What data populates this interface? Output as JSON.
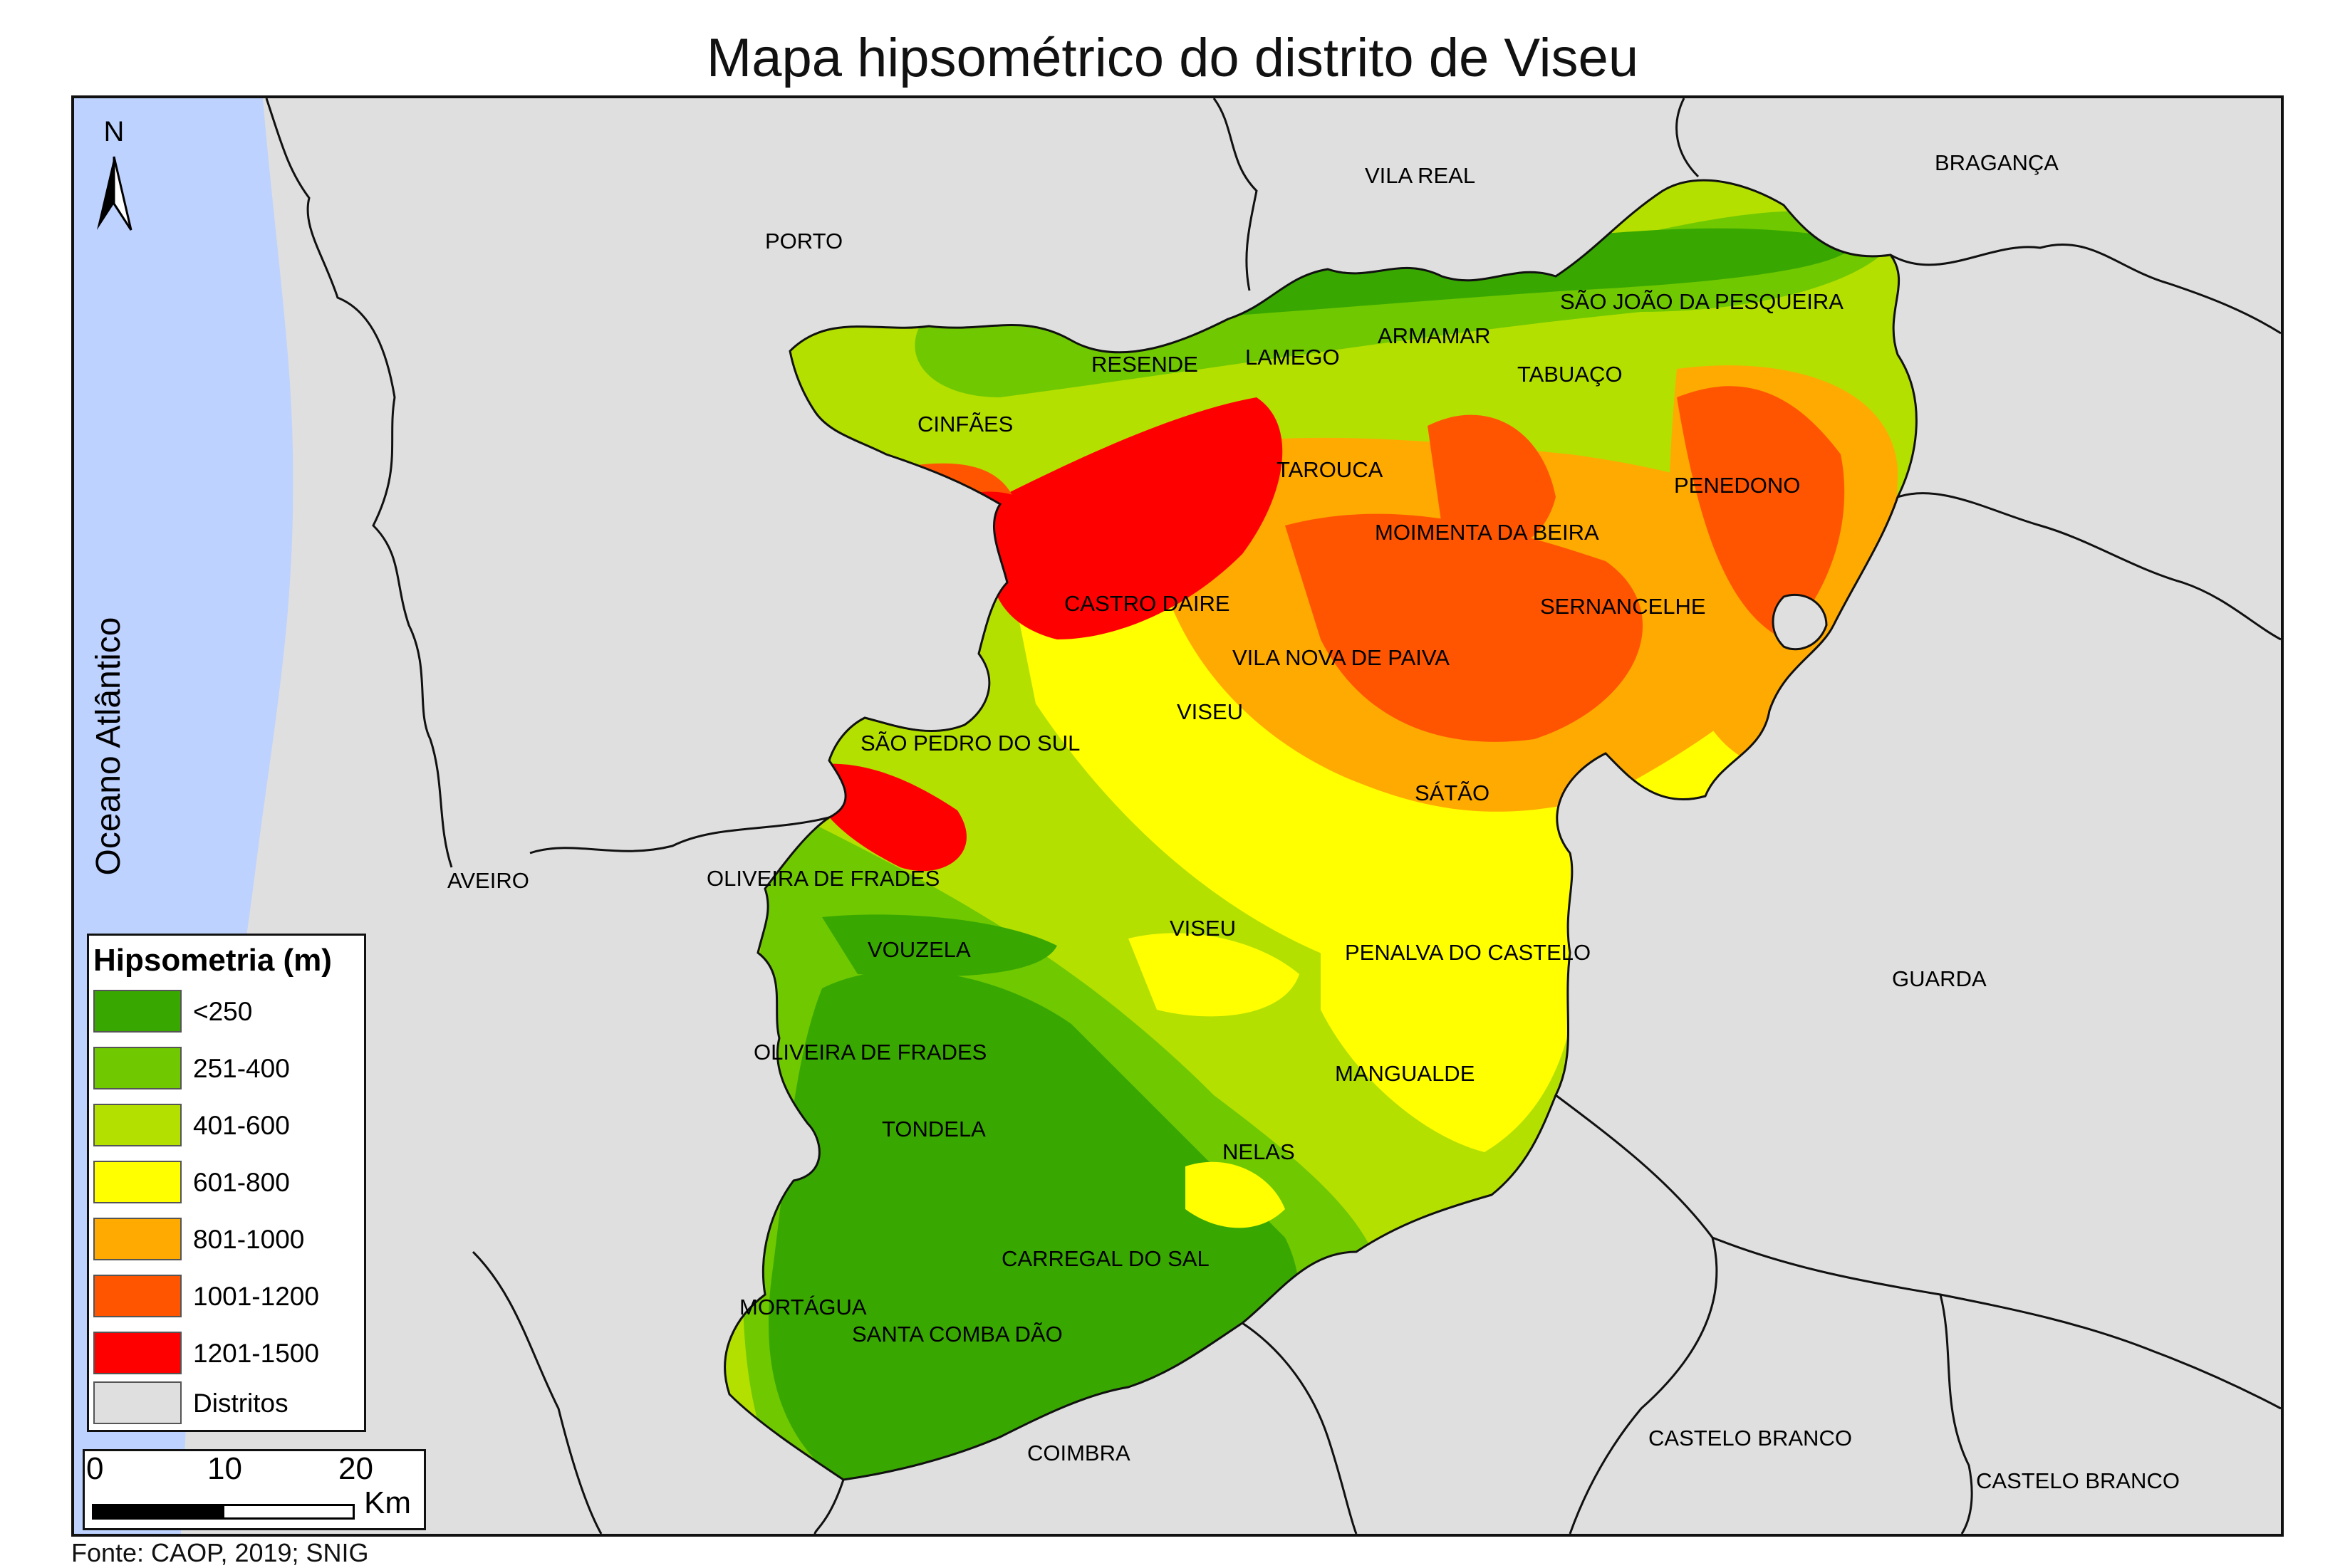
{
  "title": "Mapa hipsométrico do distrito de Viseu",
  "ocean_label": "Oceano Atlântico",
  "north_label": "N",
  "districts": [
    {
      "name": "PORTO"
    },
    {
      "name": "VILA REAL"
    },
    {
      "name": "BRAGANÇA"
    },
    {
      "name": "AVEIRO"
    },
    {
      "name": "GUARDA"
    },
    {
      "name": "COIMBRA"
    },
    {
      "name": "CASTELO BRANCO"
    },
    {
      "name": "CASTELO BRANCO"
    }
  ],
  "municipalities": [
    "SÃO JOÃO DA PESQUEIRA",
    "ARMAMAR",
    "LAMEGO",
    "RESENDE",
    "TABUAÇO",
    "CINFÃES",
    "TAROUCA",
    "PENEDONO",
    "MOIMENTA DA BEIRA",
    "CASTRO DAIRE",
    "SERNANCELHE",
    "VILA NOVA DE PAIVA",
    "VISEU",
    "SÃO PEDRO DO SUL",
    "SÁTÃO",
    "OLIVEIRA DE FRADES",
    "VISEU",
    "VOUZELA",
    "PENALVA DO CASTELO",
    "OLIVEIRA DE FRADES",
    "MANGUALDE",
    "TONDELA",
    "NELAS",
    "CARREGAL DO SAL",
    "MORTÁGUA",
    "SANTA COMBA DÃO"
  ],
  "legend": {
    "title": "Hipsometria (m)",
    "items": [
      {
        "label": "<250",
        "color": "#38a800"
      },
      {
        "label": "251-400",
        "color": "#70c800"
      },
      {
        "label": "401-600",
        "color": "#b4e000"
      },
      {
        "label": "601-800",
        "color": "#ffff00"
      },
      {
        "label": "801-1000",
        "color": "#ffaa00"
      },
      {
        "label": "1001-1200",
        "color": "#ff5500"
      },
      {
        "label": "1201-1500",
        "color": "#ff0000"
      },
      {
        "label": "Distritos",
        "color": "#dfdfdf"
      }
    ]
  },
  "scale_bar": {
    "ticks": [
      "0",
      "10",
      "20"
    ],
    "unit": "Km"
  },
  "source": "Fonte: CAOP, 2019; SNIG",
  "colors": {
    "ocean": "#bed2ff",
    "background": "#dfdfdf"
  }
}
